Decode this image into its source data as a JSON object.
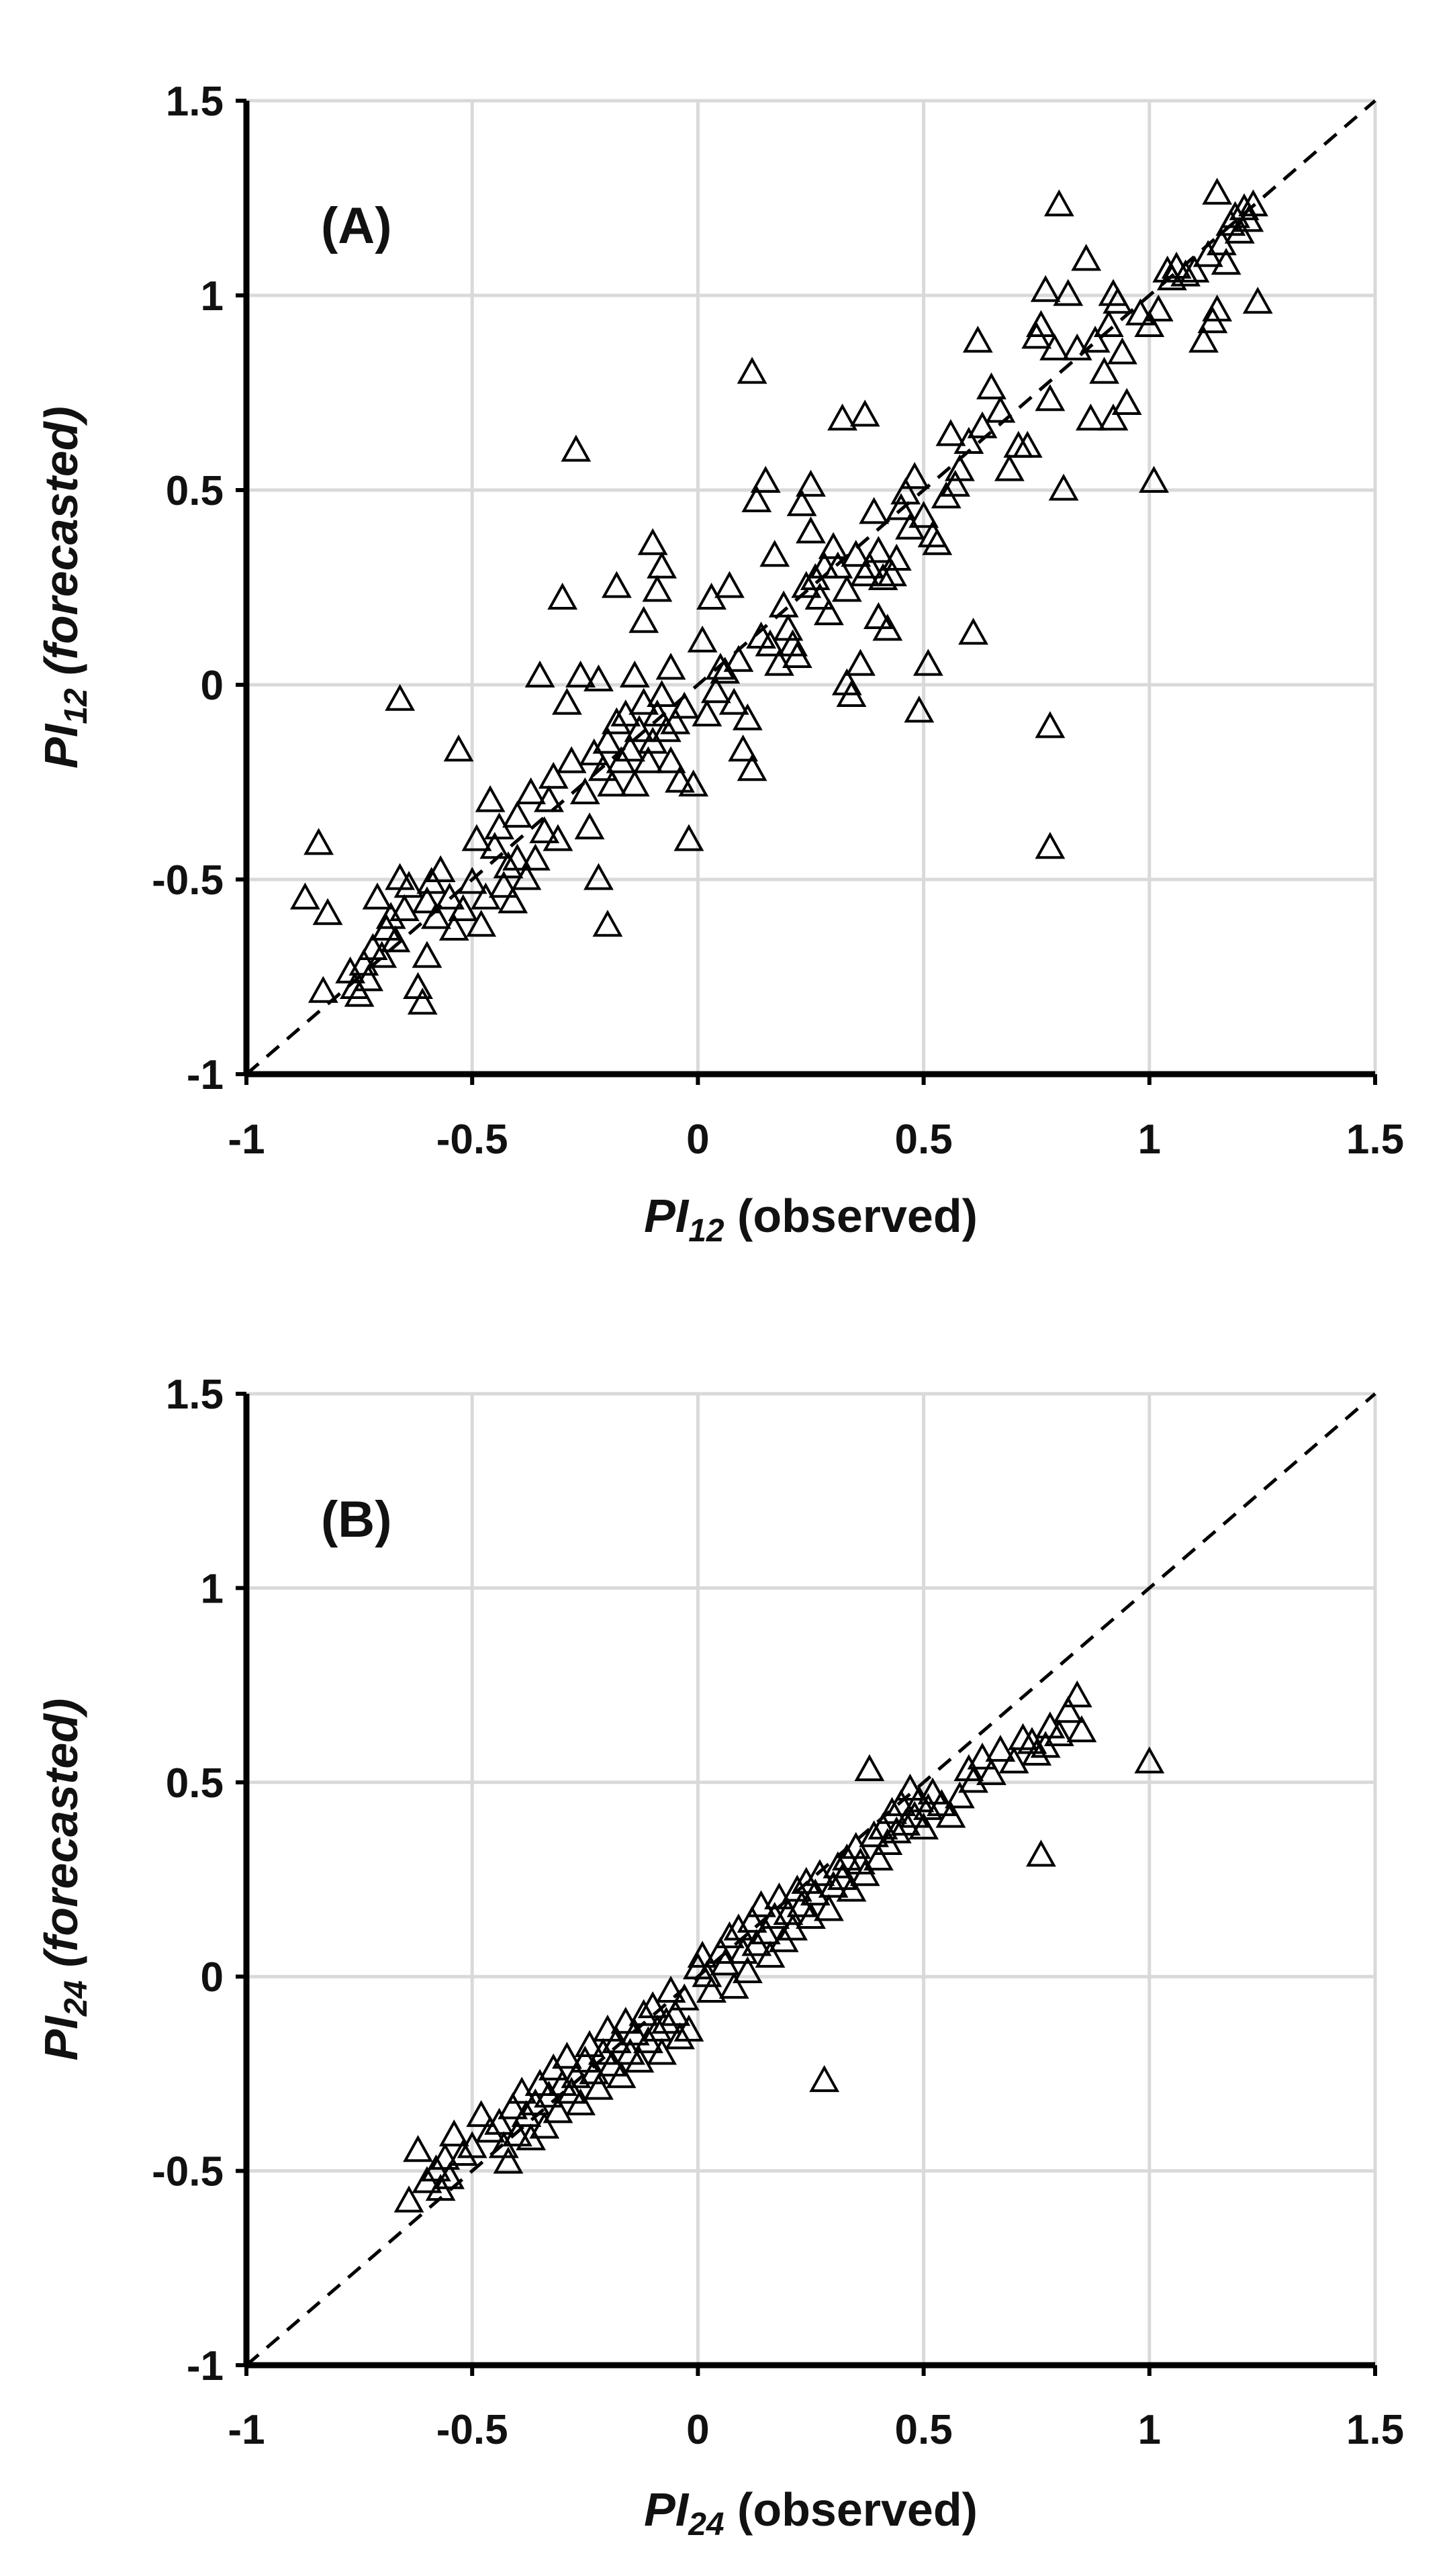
{
  "chart_data": [
    {
      "type": "scatter",
      "panel_label": "(A)",
      "xlabel_main": "PI",
      "xlabel_sub": "12",
      "xlabel_rest": " (observed)",
      "ylabel_main": "PI",
      "ylabel_sub": "12",
      "ylabel_rest": " (forecasted)",
      "xlim": [
        -1,
        1.5
      ],
      "ylim": [
        -1,
        1.5
      ],
      "x_ticks": [
        "-1",
        "-0.5",
        "0",
        "0.5",
        "1",
        "1.5"
      ],
      "y_ticks": [
        "-1",
        "-0.5",
        "0",
        "0.5",
        "1",
        "1.5"
      ],
      "reference_line": "y = x (dashed)",
      "grid": true,
      "marker": "open triangle",
      "points": [
        [
          -0.87,
          -0.55
        ],
        [
          -0.84,
          -0.41
        ],
        [
          -0.83,
          -0.79
        ],
        [
          -0.82,
          -0.59
        ],
        [
          -0.77,
          -0.74
        ],
        [
          -0.76,
          -0.78
        ],
        [
          -0.75,
          -0.8
        ],
        [
          -0.74,
          -0.72
        ],
        [
          -0.73,
          -0.76
        ],
        [
          -0.72,
          -0.68
        ],
        [
          -0.71,
          -0.55
        ],
        [
          -0.7,
          -0.7
        ],
        [
          -0.69,
          -0.63
        ],
        [
          -0.68,
          -0.6
        ],
        [
          -0.67,
          -0.66
        ],
        [
          -0.66,
          -0.04
        ],
        [
          -0.66,
          -0.5
        ],
        [
          -0.65,
          -0.58
        ],
        [
          -0.64,
          -0.52
        ],
        [
          -0.62,
          -0.78
        ],
        [
          -0.61,
          -0.82
        ],
        [
          -0.6,
          -0.56
        ],
        [
          -0.6,
          -0.7
        ],
        [
          -0.59,
          -0.51
        ],
        [
          -0.58,
          -0.6
        ],
        [
          -0.57,
          -0.48
        ],
        [
          -0.55,
          -0.55
        ],
        [
          -0.54,
          -0.63
        ],
        [
          -0.53,
          -0.17
        ],
        [
          -0.52,
          -0.58
        ],
        [
          -0.5,
          -0.51
        ],
        [
          -0.49,
          -0.4
        ],
        [
          -0.48,
          -0.62
        ],
        [
          -0.47,
          -0.55
        ],
        [
          -0.46,
          -0.3
        ],
        [
          -0.45,
          -0.42
        ],
        [
          -0.44,
          -0.37
        ],
        [
          -0.43,
          -0.52
        ],
        [
          -0.42,
          -0.47
        ],
        [
          -0.41,
          -0.56
        ],
        [
          -0.4,
          -0.45
        ],
        [
          -0.4,
          -0.34
        ],
        [
          -0.38,
          -0.5
        ],
        [
          -0.37,
          -0.28
        ],
        [
          -0.36,
          -0.45
        ],
        [
          -0.35,
          0.02
        ],
        [
          -0.34,
          -0.38
        ],
        [
          -0.33,
          -0.3
        ],
        [
          -0.32,
          -0.24
        ],
        [
          -0.31,
          -0.4
        ],
        [
          -0.3,
          0.22
        ],
        [
          -0.29,
          -0.05
        ],
        [
          -0.28,
          -0.2
        ],
        [
          -0.27,
          0.6
        ],
        [
          -0.26,
          0.02
        ],
        [
          -0.25,
          -0.28
        ],
        [
          -0.24,
          -0.37
        ],
        [
          -0.23,
          -0.18
        ],
        [
          -0.22,
          -0.5
        ],
        [
          -0.22,
          0.01
        ],
        [
          -0.21,
          -0.22
        ],
        [
          -0.2,
          -0.62
        ],
        [
          -0.2,
          -0.15
        ],
        [
          -0.19,
          -0.26
        ],
        [
          -0.18,
          0.25
        ],
        [
          -0.18,
          -0.1
        ],
        [
          -0.17,
          -0.2
        ],
        [
          -0.16,
          -0.08
        ],
        [
          -0.15,
          -0.17
        ],
        [
          -0.14,
          0.02
        ],
        [
          -0.14,
          -0.26
        ],
        [
          -0.13,
          -0.12
        ],
        [
          -0.12,
          0.16
        ],
        [
          -0.12,
          -0.05
        ],
        [
          -0.11,
          -0.2
        ],
        [
          -0.1,
          -0.15
        ],
        [
          -0.1,
          0.36
        ],
        [
          -0.09,
          -0.08
        ],
        [
          -0.09,
          0.24
        ],
        [
          -0.08,
          -0.03
        ],
        [
          -0.08,
          0.3
        ],
        [
          -0.07,
          -0.12
        ],
        [
          -0.06,
          -0.2
        ],
        [
          -0.06,
          0.04
        ],
        [
          -0.05,
          -0.1
        ],
        [
          -0.04,
          -0.25
        ],
        [
          -0.03,
          -0.06
        ],
        [
          -0.02,
          -0.4
        ],
        [
          -0.01,
          -0.26
        ],
        [
          0.01,
          0.11
        ],
        [
          0.02,
          -0.08
        ],
        [
          0.03,
          0.22
        ],
        [
          0.04,
          -0.02
        ],
        [
          0.05,
          0.04
        ],
        [
          0.06,
          0.03
        ],
        [
          0.07,
          0.25
        ],
        [
          0.08,
          -0.05
        ],
        [
          0.09,
          0.06
        ],
        [
          0.1,
          -0.17
        ],
        [
          0.11,
          -0.09
        ],
        [
          0.12,
          0.8
        ],
        [
          0.12,
          -0.22
        ],
        [
          0.13,
          0.47
        ],
        [
          0.14,
          0.12
        ],
        [
          0.15,
          0.52
        ],
        [
          0.16,
          0.1
        ],
        [
          0.17,
          0.33
        ],
        [
          0.18,
          0.05
        ],
        [
          0.19,
          0.2
        ],
        [
          0.2,
          0.14
        ],
        [
          0.21,
          0.1
        ],
        [
          0.22,
          0.07
        ],
        [
          0.23,
          0.46
        ],
        [
          0.24,
          0.25
        ],
        [
          0.25,
          0.39
        ],
        [
          0.25,
          0.51
        ],
        [
          0.26,
          0.27
        ],
        [
          0.27,
          0.22
        ],
        [
          0.28,
          0.3
        ],
        [
          0.29,
          0.18
        ],
        [
          0.3,
          0.35
        ],
        [
          0.31,
          0.3
        ],
        [
          0.32,
          0.68
        ],
        [
          0.33,
          0.24
        ],
        [
          0.33,
          0.0
        ],
        [
          0.34,
          -0.03
        ],
        [
          0.35,
          0.33
        ],
        [
          0.36,
          0.05
        ],
        [
          0.37,
          0.69
        ],
        [
          0.37,
          0.28
        ],
        [
          0.38,
          0.3
        ],
        [
          0.39,
          0.44
        ],
        [
          0.4,
          0.17
        ],
        [
          0.4,
          0.34
        ],
        [
          0.41,
          0.27
        ],
        [
          0.42,
          0.14
        ],
        [
          0.43,
          0.28
        ],
        [
          0.44,
          0.32
        ],
        [
          0.45,
          0.45
        ],
        [
          0.46,
          0.49
        ],
        [
          0.47,
          0.4
        ],
        [
          0.48,
          0.53
        ],
        [
          0.49,
          -0.07
        ],
        [
          0.5,
          0.43
        ],
        [
          0.51,
          0.05
        ],
        [
          0.52,
          0.38
        ],
        [
          0.53,
          0.36
        ],
        [
          0.55,
          0.48
        ],
        [
          0.56,
          0.64
        ],
        [
          0.57,
          0.51
        ],
        [
          0.58,
          0.55
        ],
        [
          0.6,
          0.62
        ],
        [
          0.61,
          0.13
        ],
        [
          0.62,
          0.88
        ],
        [
          0.63,
          0.66
        ],
        [
          0.65,
          0.76
        ],
        [
          0.67,
          0.7
        ],
        [
          0.69,
          0.55
        ],
        [
          0.71,
          0.61
        ],
        [
          0.73,
          0.61
        ],
        [
          0.75,
          0.89
        ],
        [
          0.76,
          0.92
        ],
        [
          0.77,
          1.01
        ],
        [
          0.78,
          -0.11
        ],
        [
          0.78,
          -0.42
        ],
        [
          0.78,
          0.73
        ],
        [
          0.79,
          0.86
        ],
        [
          0.8,
          1.23
        ],
        [
          0.81,
          0.5
        ],
        [
          0.82,
          1.0
        ],
        [
          0.84,
          0.86
        ],
        [
          0.86,
          1.09
        ],
        [
          0.87,
          0.68
        ],
        [
          0.88,
          0.88
        ],
        [
          0.9,
          0.8
        ],
        [
          0.91,
          0.92
        ],
        [
          0.92,
          1.0
        ],
        [
          0.92,
          0.68
        ],
        [
          0.93,
          0.98
        ],
        [
          0.94,
          0.85
        ],
        [
          0.95,
          0.72
        ],
        [
          0.98,
          0.95
        ],
        [
          1.0,
          0.92
        ],
        [
          1.01,
          0.52
        ],
        [
          1.02,
          0.96
        ],
        [
          1.04,
          1.06
        ],
        [
          1.05,
          1.04
        ],
        [
          1.06,
          1.07
        ],
        [
          1.08,
          1.05
        ],
        [
          1.1,
          1.06
        ],
        [
          1.12,
          0.88
        ],
        [
          1.13,
          1.1
        ],
        [
          1.14,
          0.93
        ],
        [
          1.15,
          1.26
        ],
        [
          1.15,
          0.96
        ],
        [
          1.16,
          1.13
        ],
        [
          1.17,
          1.08
        ],
        [
          1.18,
          1.18
        ],
        [
          1.19,
          1.2
        ],
        [
          1.2,
          1.16
        ],
        [
          1.21,
          1.22
        ],
        [
          1.22,
          1.19
        ],
        [
          1.23,
          1.23
        ],
        [
          1.24,
          0.98
        ]
      ]
    },
    {
      "type": "scatter",
      "panel_label": "(B)",
      "xlabel_main": "PI",
      "xlabel_sub": "24",
      "xlabel_rest": " (observed)",
      "ylabel_main": "PI",
      "ylabel_sub": "24",
      "ylabel_rest": " (forecasted)",
      "xlim": [
        -1,
        1.5
      ],
      "ylim": [
        -1,
        1.5
      ],
      "x_ticks": [
        "-1",
        "-0.5",
        "0",
        "0.5",
        "1",
        "1.5"
      ],
      "y_ticks": [
        "-1",
        "-0.5",
        "0",
        "0.5",
        "1",
        "1.5"
      ],
      "reference_line": "y = x (dashed)",
      "grid": true,
      "marker": "open triangle",
      "points": [
        [
          -0.64,
          -0.58
        ],
        [
          -0.62,
          -0.45
        ],
        [
          -0.6,
          -0.53
        ],
        [
          -0.58,
          -0.5
        ],
        [
          -0.57,
          -0.55
        ],
        [
          -0.56,
          -0.47
        ],
        [
          -0.55,
          -0.52
        ],
        [
          -0.54,
          -0.41
        ],
        [
          -0.52,
          -0.46
        ],
        [
          -0.5,
          -0.44
        ],
        [
          -0.48,
          -0.36
        ],
        [
          -0.46,
          -0.4
        ],
        [
          -0.44,
          -0.38
        ],
        [
          -0.43,
          -0.44
        ],
        [
          -0.42,
          -0.48
        ],
        [
          -0.41,
          -0.34
        ],
        [
          -0.4,
          -0.41
        ],
        [
          -0.39,
          -0.3
        ],
        [
          -0.38,
          -0.36
        ],
        [
          -0.37,
          -0.42
        ],
        [
          -0.36,
          -0.33
        ],
        [
          -0.35,
          -0.28
        ],
        [
          -0.34,
          -0.39
        ],
        [
          -0.33,
          -0.31
        ],
        [
          -0.32,
          -0.24
        ],
        [
          -0.31,
          -0.35
        ],
        [
          -0.3,
          -0.28
        ],
        [
          -0.29,
          -0.21
        ],
        [
          -0.28,
          -0.3
        ],
        [
          -0.27,
          -0.26
        ],
        [
          -0.26,
          -0.33
        ],
        [
          -0.25,
          -0.22
        ],
        [
          -0.24,
          -0.18
        ],
        [
          -0.23,
          -0.25
        ],
        [
          -0.22,
          -0.29
        ],
        [
          -0.21,
          -0.2
        ],
        [
          -0.2,
          -0.14
        ],
        [
          -0.19,
          -0.23
        ],
        [
          -0.18,
          -0.17
        ],
        [
          -0.17,
          -0.26
        ],
        [
          -0.16,
          -0.12
        ],
        [
          -0.15,
          -0.2
        ],
        [
          -0.14,
          -0.15
        ],
        [
          -0.13,
          -0.22
        ],
        [
          -0.12,
          -0.1
        ],
        [
          -0.11,
          -0.17
        ],
        [
          -0.1,
          -0.08
        ],
        [
          -0.09,
          -0.14
        ],
        [
          -0.08,
          -0.2
        ],
        [
          -0.07,
          -0.12
        ],
        [
          -0.06,
          -0.04
        ],
        [
          -0.05,
          -0.1
        ],
        [
          -0.04,
          -0.16
        ],
        [
          -0.03,
          -0.06
        ],
        [
          -0.02,
          -0.14
        ],
        [
          0.0,
          0.02
        ],
        [
          0.01,
          0.05
        ],
        [
          0.02,
          0.0
        ],
        [
          0.03,
          -0.04
        ],
        [
          0.05,
          0.06
        ],
        [
          0.06,
          0.03
        ],
        [
          0.07,
          0.1
        ],
        [
          0.08,
          -0.03
        ],
        [
          0.09,
          0.12
        ],
        [
          0.1,
          0.06
        ],
        [
          0.11,
          0.01
        ],
        [
          0.12,
          0.14
        ],
        [
          0.13,
          0.08
        ],
        [
          0.14,
          0.18
        ],
        [
          0.15,
          0.11
        ],
        [
          0.16,
          0.05
        ],
        [
          0.17,
          0.15
        ],
        [
          0.18,
          0.2
        ],
        [
          0.19,
          0.09
        ],
        [
          0.2,
          0.16
        ],
        [
          0.21,
          0.12
        ],
        [
          0.22,
          0.22
        ],
        [
          0.23,
          0.18
        ],
        [
          0.24,
          0.24
        ],
        [
          0.25,
          0.15
        ],
        [
          0.26,
          0.21
        ],
        [
          0.27,
          0.26
        ],
        [
          0.28,
          -0.27
        ],
        [
          0.29,
          0.17
        ],
        [
          0.3,
          0.23
        ],
        [
          0.31,
          0.28
        ],
        [
          0.32,
          0.25
        ],
        [
          0.33,
          0.3
        ],
        [
          0.34,
          0.22
        ],
        [
          0.35,
          0.33
        ],
        [
          0.36,
          0.29
        ],
        [
          0.37,
          0.26
        ],
        [
          0.38,
          0.53
        ],
        [
          0.39,
          0.36
        ],
        [
          0.4,
          0.3
        ],
        [
          0.41,
          0.38
        ],
        [
          0.42,
          0.34
        ],
        [
          0.43,
          0.42
        ],
        [
          0.44,
          0.37
        ],
        [
          0.45,
          0.44
        ],
        [
          0.46,
          0.39
        ],
        [
          0.47,
          0.48
        ],
        [
          0.48,
          0.41
        ],
        [
          0.49,
          0.45
        ],
        [
          0.5,
          0.38
        ],
        [
          0.51,
          0.43
        ],
        [
          0.52,
          0.47
        ],
        [
          0.54,
          0.44
        ],
        [
          0.56,
          0.41
        ],
        [
          0.58,
          0.46
        ],
        [
          0.6,
          0.53
        ],
        [
          0.61,
          0.5
        ],
        [
          0.63,
          0.56
        ],
        [
          0.65,
          0.52
        ],
        [
          0.67,
          0.58
        ],
        [
          0.7,
          0.55
        ],
        [
          0.72,
          0.61
        ],
        [
          0.74,
          0.6
        ],
        [
          0.75,
          0.57
        ],
        [
          0.76,
          0.31
        ],
        [
          0.77,
          0.59
        ],
        [
          0.78,
          0.64
        ],
        [
          0.8,
          0.62
        ],
        [
          0.82,
          0.68
        ],
        [
          0.84,
          0.72
        ],
        [
          0.85,
          0.63
        ],
        [
          1.0,
          0.55
        ]
      ]
    }
  ]
}
